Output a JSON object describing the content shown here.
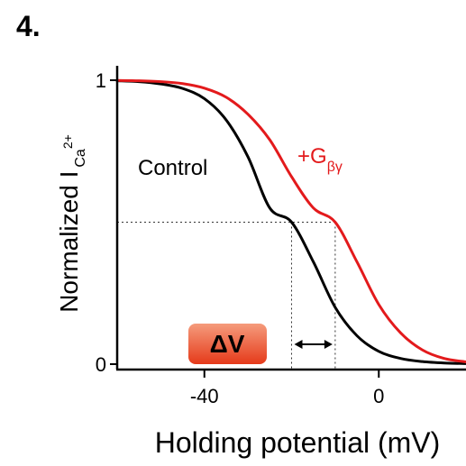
{
  "panel_label": "4.",
  "chart_data": {
    "type": "line",
    "xlabel": "Holding potential (mV)",
    "ylabel": {
      "main": "Normalized I",
      "sub": "Ca",
      "sup": "2+"
    },
    "xlim": [
      -60,
      20
    ],
    "ylim": [
      0,
      1
    ],
    "x_ticks": [
      -40,
      0
    ],
    "y_ticks": [
      0,
      1
    ],
    "x_tick_labels": [
      "-40",
      "0"
    ],
    "y_tick_labels": [
      "0",
      "1"
    ],
    "series": [
      {
        "name": "Control",
        "color": "#000000",
        "x": [
          -60,
          -55,
          -50,
          -45,
          -40,
          -35,
          -30,
          -25,
          -20,
          -15,
          -10,
          -5,
          0,
          5,
          10,
          15,
          20
        ],
        "y": [
          0.998,
          0.995,
          0.987,
          0.971,
          0.935,
          0.86,
          0.73,
          0.55,
          0.5,
          0.36,
          0.2,
          0.1,
          0.045,
          0.02,
          0.009,
          0.004,
          0.002
        ]
      },
      {
        "name": "+G",
        "subscript": "βγ",
        "color": "#e31a1c",
        "x": [
          -60,
          -55,
          -50,
          -45,
          -40,
          -35,
          -30,
          -25,
          -20,
          -15,
          -10,
          -5,
          0,
          5,
          10,
          15,
          20
        ],
        "y": [
          0.999,
          0.998,
          0.995,
          0.988,
          0.972,
          0.94,
          0.88,
          0.79,
          0.66,
          0.55,
          0.5,
          0.36,
          0.21,
          0.11,
          0.05,
          0.02,
          0.008
        ]
      }
    ],
    "midpoints": {
      "y": 0.5,
      "control_x": -20,
      "gbg_x": -10
    },
    "annotations": {
      "delta_v_label": "ΔV",
      "delta_v_colors": {
        "top": "#f59b7c",
        "bottom": "#e53a1a",
        "text": "#000000"
      },
      "guide_line_color": "#333333"
    }
  }
}
